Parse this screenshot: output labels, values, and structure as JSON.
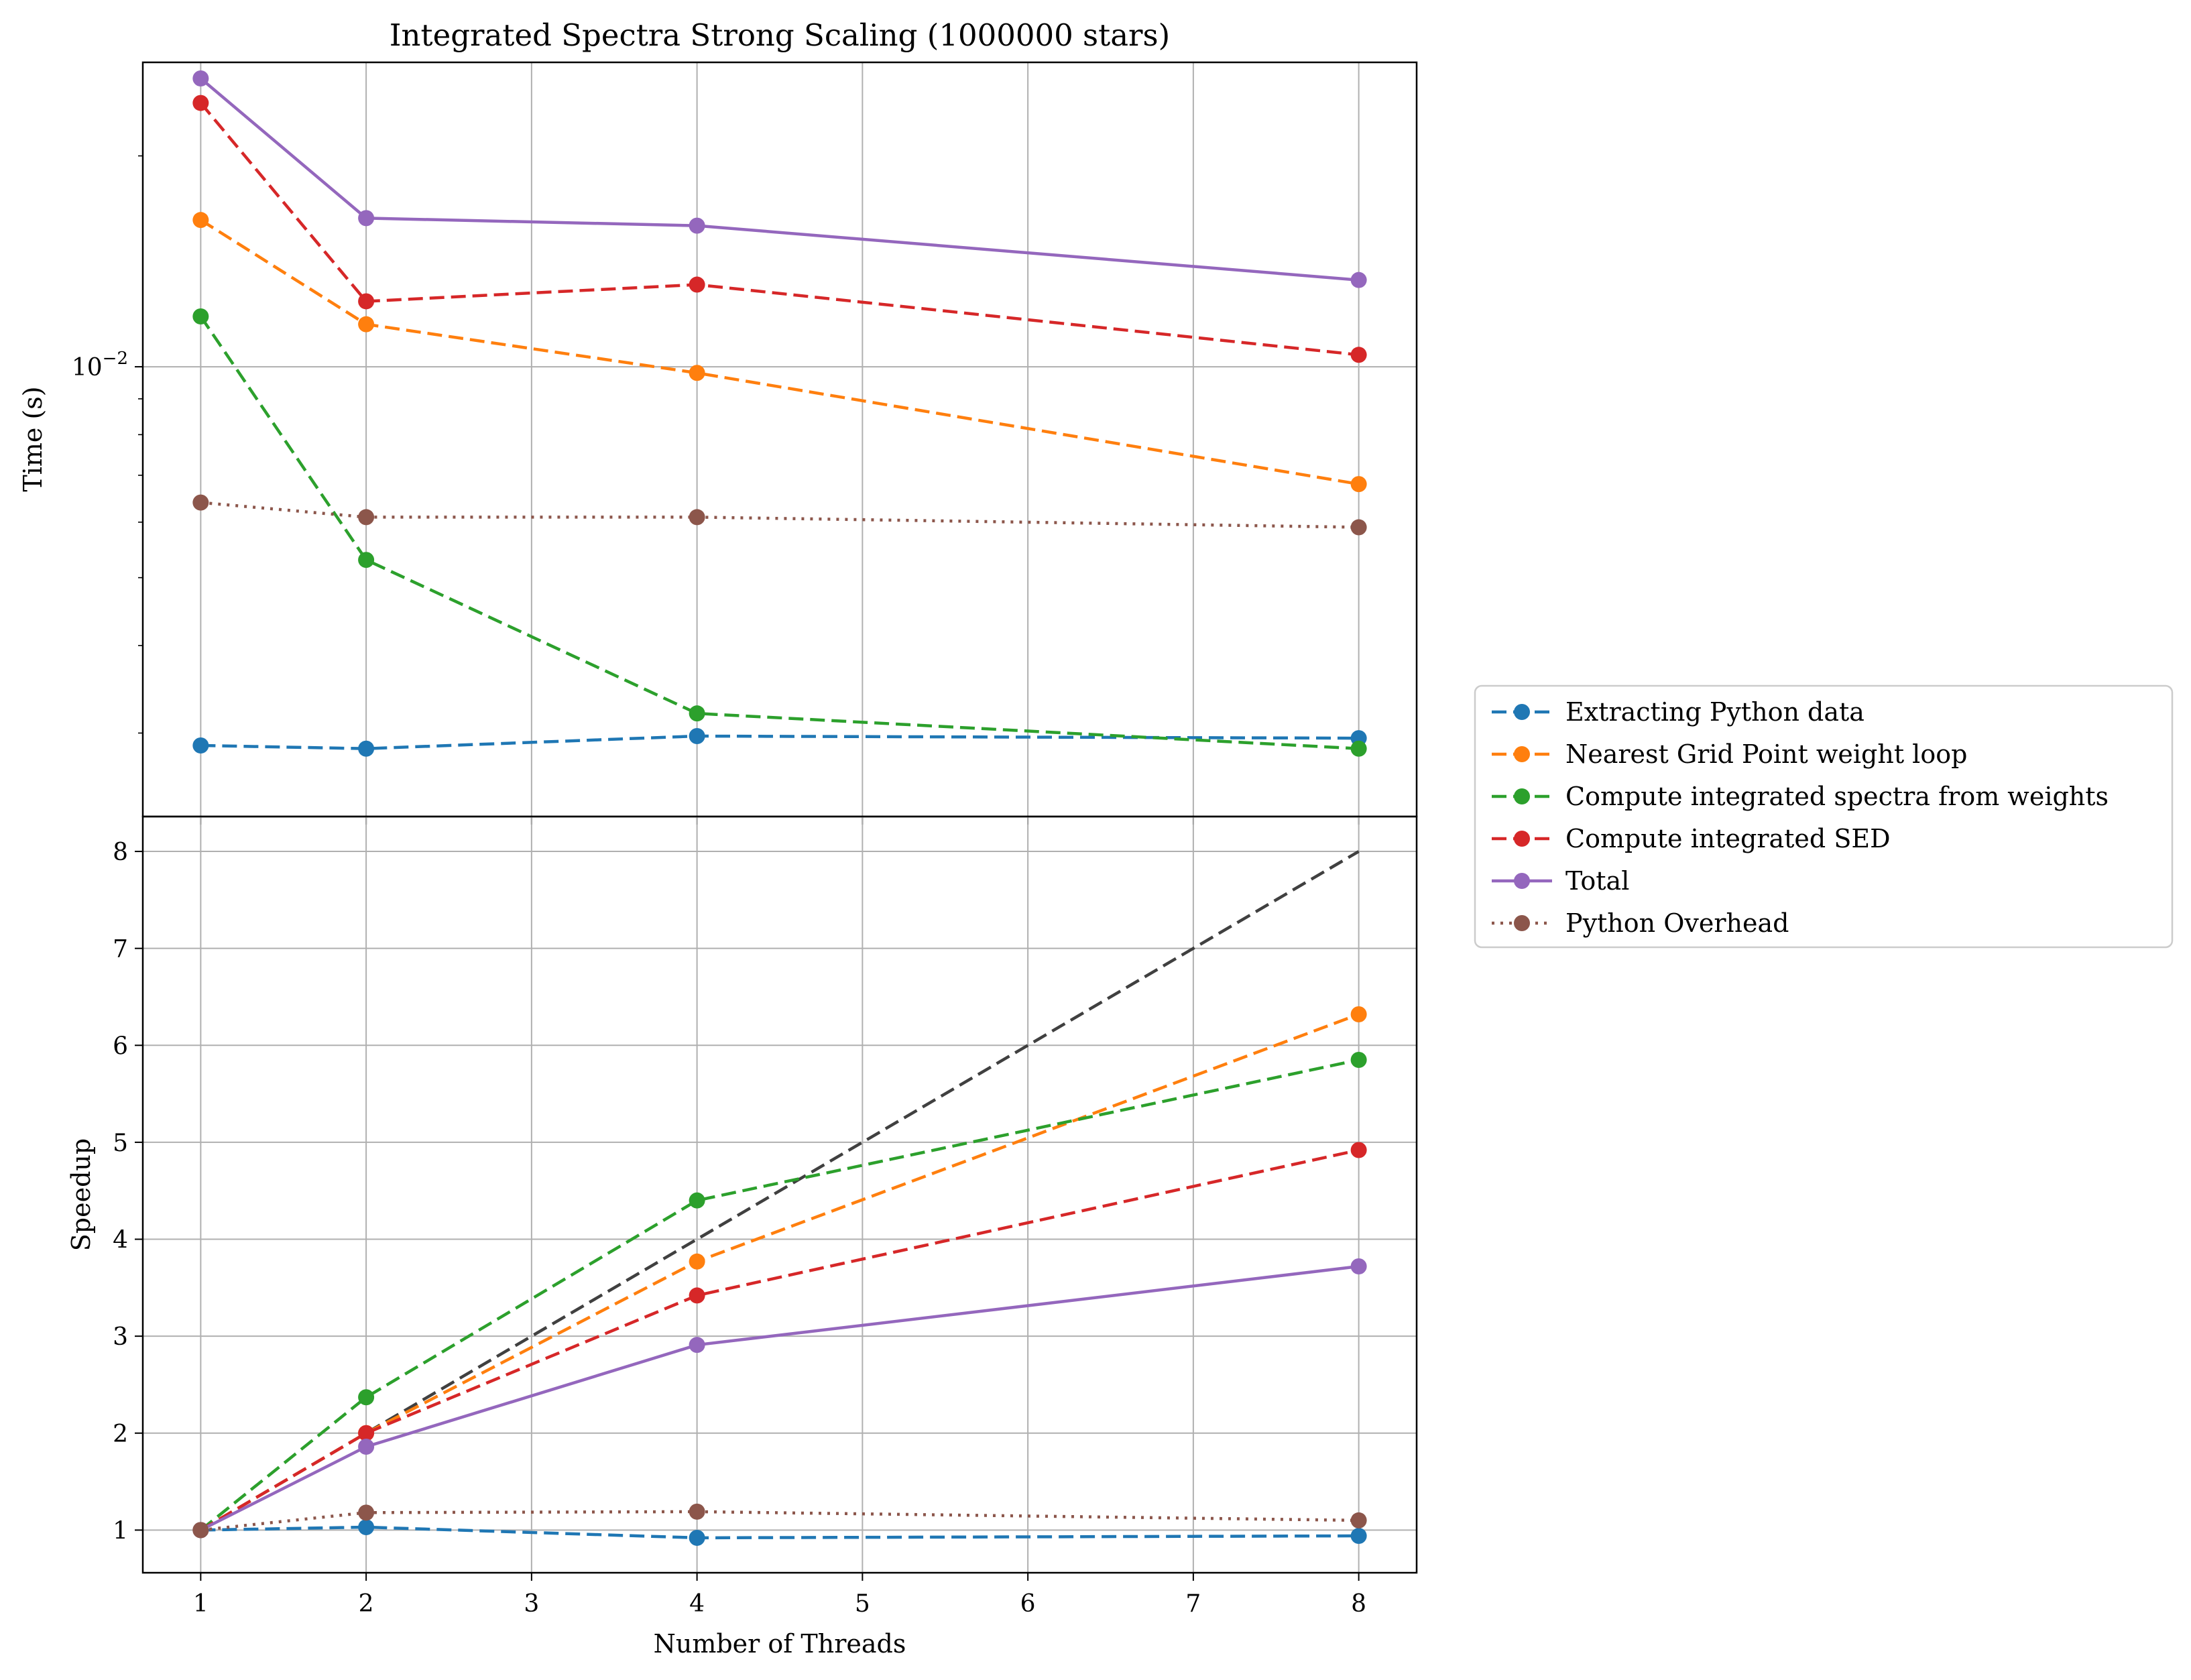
{
  "chart_data": [
    {
      "type": "line",
      "title": "Integrated Spectra Strong Scaling (1000000 stars)",
      "ylabel": "Time (s)",
      "xlabel": "",
      "yscale": "log",
      "ylim": [
        0.00228,
        0.0272
      ],
      "xlim": [
        0.65,
        8.35
      ],
      "grid": true,
      "y_tick_labels": [
        {
          "value": 0.01,
          "base": "10",
          "exp": "−2"
        }
      ],
      "x": [
        1,
        2,
        4,
        8
      ],
      "series": [
        {
          "name": "Extracting Python data",
          "color": "#1f77b4",
          "dash": "dashed",
          "values": [
            0.00288,
            0.00285,
            0.00297,
            0.00295
          ]
        },
        {
          "name": "Nearest Grid Point weight loop",
          "color": "#ff7f0e",
          "dash": "dashed",
          "values": [
            0.0162,
            0.0115,
            0.0098,
            0.0068
          ]
        },
        {
          "name": "Compute integrated spectra from weights",
          "color": "#2ca02c",
          "dash": "dashed",
          "values": [
            0.0118,
            0.0053,
            0.0032,
            0.00285
          ]
        },
        {
          "name": "Compute integrated SED",
          "color": "#d62728",
          "dash": "dashed",
          "values": [
            0.0238,
            0.0124,
            0.0131,
            0.0104
          ]
        },
        {
          "name": "Total",
          "color": "#9467bd",
          "dash": "solid",
          "values": [
            0.0258,
            0.0163,
            0.0159,
            0.0133
          ]
        },
        {
          "name": "Python Overhead",
          "color": "#8c564b",
          "dash": "dotted",
          "values": [
            0.0064,
            0.0061,
            0.0061,
            0.0059
          ]
        }
      ]
    },
    {
      "type": "line",
      "title": "",
      "ylabel": "Speedup",
      "xlabel": "Number of Threads",
      "ylim": [
        0.56,
        8.36
      ],
      "xlim": [
        0.65,
        8.35
      ],
      "grid": true,
      "y_ticks": [
        1,
        2,
        3,
        4,
        5,
        6,
        7,
        8
      ],
      "x_ticks": [
        1,
        2,
        3,
        4,
        5,
        6,
        7,
        8
      ],
      "x": [
        1,
        2,
        4,
        8
      ],
      "ideal": {
        "color": "#404040",
        "dash": "dashed",
        "x": [
          1,
          8
        ],
        "values": [
          1,
          8
        ]
      },
      "series": [
        {
          "name": "Extracting Python data",
          "color": "#1f77b4",
          "dash": "dashed",
          "values": [
            1.0,
            1.03,
            0.92,
            0.94
          ]
        },
        {
          "name": "Nearest Grid Point weight loop",
          "color": "#ff7f0e",
          "dash": "dashed",
          "values": [
            1.0,
            2.0,
            3.77,
            6.32
          ]
        },
        {
          "name": "Compute integrated spectra from weights",
          "color": "#2ca02c",
          "dash": "dashed",
          "values": [
            1.0,
            2.37,
            4.4,
            5.85
          ]
        },
        {
          "name": "Compute integrated SED",
          "color": "#d62728",
          "dash": "dashed",
          "values": [
            1.0,
            2.0,
            3.42,
            4.92
          ]
        },
        {
          "name": "Total",
          "color": "#9467bd",
          "dash": "solid",
          "values": [
            1.0,
            1.86,
            2.91,
            3.72
          ]
        },
        {
          "name": "Python Overhead",
          "color": "#8c564b",
          "dash": "dotted",
          "values": [
            1.0,
            1.18,
            1.19,
            1.1
          ]
        }
      ]
    }
  ],
  "legend": {
    "placement": "right",
    "entries": [
      {
        "label": "Extracting Python data",
        "color": "#1f77b4",
        "dash": "dashed"
      },
      {
        "label": "Nearest Grid Point weight loop",
        "color": "#ff7f0e",
        "dash": "dashed"
      },
      {
        "label": "Compute integrated spectra from weights",
        "color": "#2ca02c",
        "dash": "dashed"
      },
      {
        "label": "Compute integrated SED",
        "color": "#d62728",
        "dash": "dashed"
      },
      {
        "label": "Total",
        "color": "#9467bd",
        "dash": "solid"
      },
      {
        "label": "Python Overhead",
        "color": "#8c564b",
        "dash": "dotted"
      }
    ]
  }
}
